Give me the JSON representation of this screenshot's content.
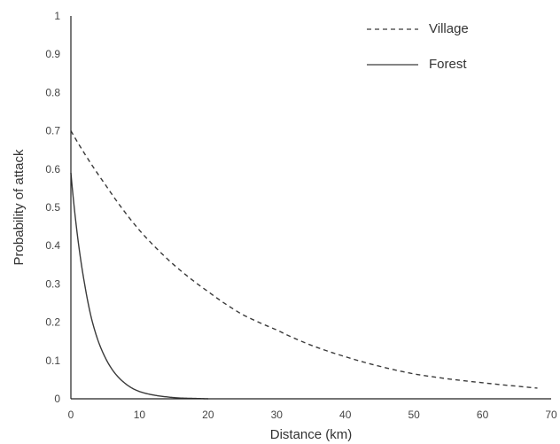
{
  "chart_data": {
    "type": "line",
    "xlabel": "Distance (km)",
    "ylabel": "Probability of attack",
    "xlim": [
      0,
      70
    ],
    "ylim": [
      0,
      1
    ],
    "xticks": [
      "0",
      "10",
      "20",
      "30",
      "40",
      "50",
      "60",
      "70"
    ],
    "yticks": [
      "0",
      "0.1",
      "0.2",
      "0.3",
      "0.4",
      "0.5",
      "0.6",
      "0.7",
      "0.8",
      "0.9",
      "1"
    ],
    "grid": false,
    "legend_position": "top-right",
    "series": [
      {
        "name": "Village",
        "style": "dashed",
        "color": "#3a3a3a",
        "x": [
          0,
          5,
          10,
          15,
          20,
          25,
          30,
          35,
          40,
          45,
          50,
          55,
          60,
          65,
          68
        ],
        "y": [
          0.7,
          0.56,
          0.44,
          0.35,
          0.28,
          0.22,
          0.18,
          0.14,
          0.11,
          0.085,
          0.065,
          0.052,
          0.042,
          0.033,
          0.028
        ]
      },
      {
        "name": "Forest",
        "style": "solid",
        "color": "#3a3a3a",
        "x": [
          0,
          1,
          2,
          3,
          4,
          5,
          6,
          7,
          8,
          9,
          10,
          12,
          14,
          16,
          18,
          20
        ],
        "y": [
          0.59,
          0.42,
          0.3,
          0.21,
          0.15,
          0.108,
          0.077,
          0.055,
          0.039,
          0.027,
          0.019,
          0.01,
          0.005,
          0.002,
          0.001,
          0.0
        ]
      }
    ]
  }
}
